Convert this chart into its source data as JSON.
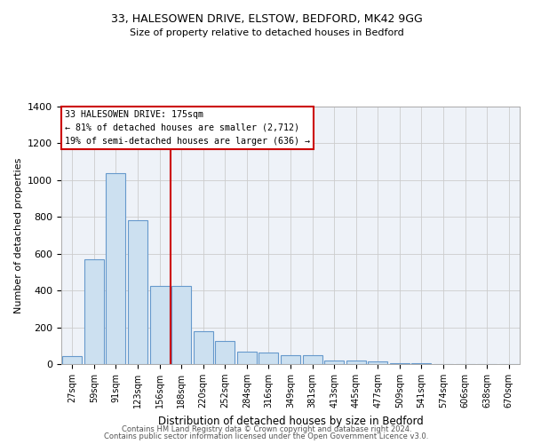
{
  "title1": "33, HALESOWEN DRIVE, ELSTOW, BEDFORD, MK42 9GG",
  "title2": "Size of property relative to detached houses in Bedford",
  "xlabel": "Distribution of detached houses by size in Bedford",
  "ylabel": "Number of detached properties",
  "bar_labels": [
    "27sqm",
    "59sqm",
    "91sqm",
    "123sqm",
    "156sqm",
    "188sqm",
    "220sqm",
    "252sqm",
    "284sqm",
    "316sqm",
    "349sqm",
    "381sqm",
    "413sqm",
    "445sqm",
    "477sqm",
    "509sqm",
    "541sqm",
    "574sqm",
    "606sqm",
    "638sqm",
    "670sqm"
  ],
  "bar_heights": [
    45,
    570,
    1040,
    780,
    425,
    425,
    180,
    125,
    70,
    65,
    50,
    50,
    20,
    20,
    15,
    5,
    5,
    0,
    0,
    0,
    0
  ],
  "bar_color": "#cce0f0",
  "bar_edgecolor": "#6699cc",
  "ylim": [
    0,
    1400
  ],
  "yticks": [
    0,
    200,
    400,
    600,
    800,
    1000,
    1200,
    1400
  ],
  "red_line_x": 4.5,
  "annotation_box_text1": "33 HALESOWEN DRIVE: 175sqm",
  "annotation_text2": "← 81% of detached houses are smaller (2,712)",
  "annotation_text3": "19% of semi-detached houses are larger (636) →",
  "red_line_color": "#cc0000",
  "grid_color": "#cccccc",
  "bg_color": "#eef2f8",
  "footer1": "Contains HM Land Registry data © Crown copyright and database right 2024.",
  "footer2": "Contains public sector information licensed under the Open Government Licence v3.0."
}
